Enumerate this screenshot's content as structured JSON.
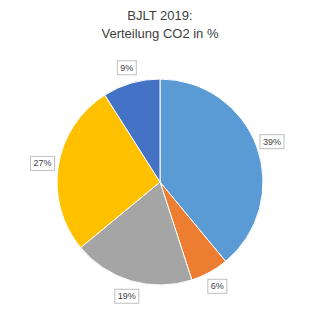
{
  "chart_data": {
    "type": "pie",
    "title": "BJLT 2019:",
    "subtitle": "Verteilung CO2 in %",
    "values": [
      39,
      6,
      19,
      27,
      9
    ],
    "value_labels": [
      "39%",
      "6%",
      "19%",
      "27%",
      "9%"
    ],
    "colors": [
      "#5b9bd5",
      "#ed7d31",
      "#a5a5a5",
      "#ffc000",
      "#4472c4"
    ],
    "data_labels": true
  }
}
